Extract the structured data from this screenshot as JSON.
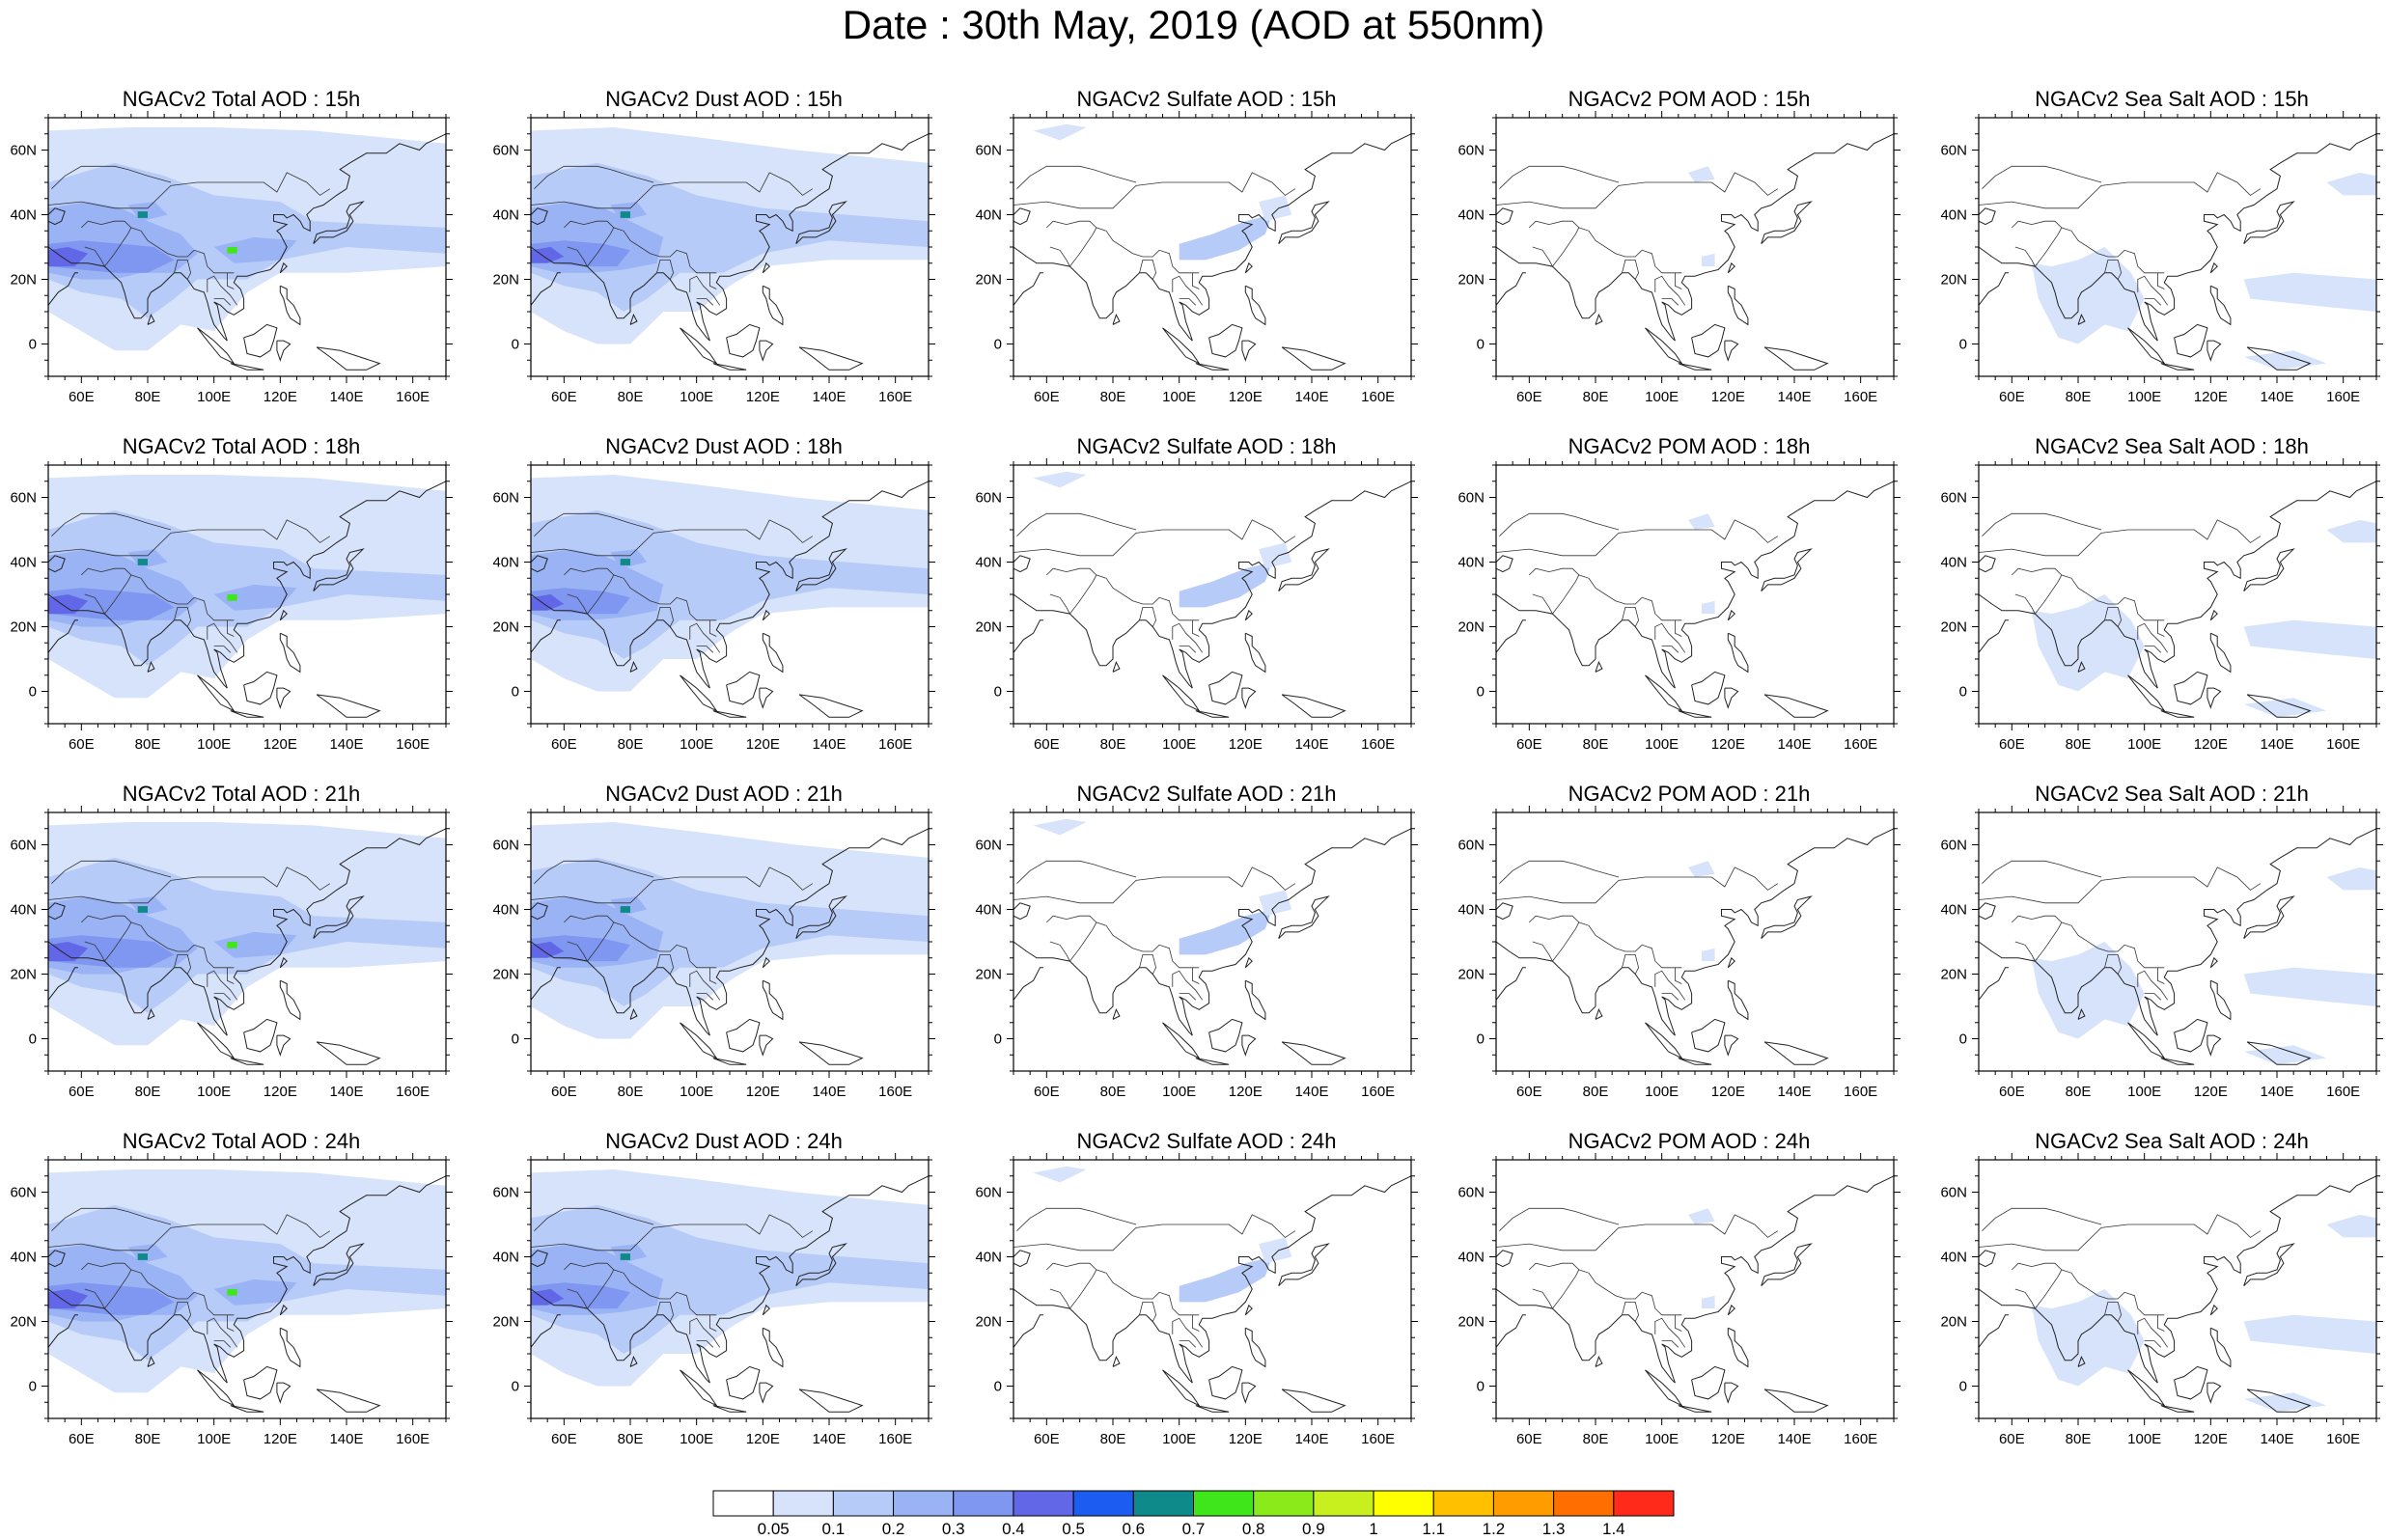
{
  "title": "Date : 30th May, 2019 (AOD at 550nm)",
  "map": {
    "lon_range": [
      50,
      170
    ],
    "lat_range": [
      -10,
      70
    ],
    "x_ticks": [
      {
        "lon": 60,
        "label": "60E"
      },
      {
        "lon": 80,
        "label": "80E"
      },
      {
        "lon": 100,
        "label": "100E"
      },
      {
        "lon": 120,
        "label": "120E"
      },
      {
        "lon": 140,
        "label": "140E"
      },
      {
        "lon": 160,
        "label": "160E"
      }
    ],
    "y_ticks": [
      {
        "lat": 60,
        "label": "60N"
      },
      {
        "lat": 40,
        "label": "40N"
      },
      {
        "lat": 20,
        "label": "20N"
      },
      {
        "lat": 0,
        "label": "0"
      }
    ]
  },
  "panels": [
    {
      "title": "NGACv2 Total AOD : 15h",
      "species": "total",
      "hour": 15
    },
    {
      "title": "NGACv2 Dust AOD : 15h",
      "species": "dust",
      "hour": 15
    },
    {
      "title": "NGACv2 Sulfate AOD : 15h",
      "species": "sulfate",
      "hour": 15
    },
    {
      "title": "NGACv2 POM AOD : 15h",
      "species": "pom",
      "hour": 15
    },
    {
      "title": "NGACv2 Sea Salt AOD : 15h",
      "species": "seasalt",
      "hour": 15
    },
    {
      "title": "NGACv2 Total AOD : 18h",
      "species": "total",
      "hour": 18
    },
    {
      "title": "NGACv2 Dust AOD : 18h",
      "species": "dust",
      "hour": 18
    },
    {
      "title": "NGACv2 Sulfate AOD : 18h",
      "species": "sulfate",
      "hour": 18
    },
    {
      "title": "NGACv2 POM AOD : 18h",
      "species": "pom",
      "hour": 18
    },
    {
      "title": "NGACv2 Sea Salt AOD : 18h",
      "species": "seasalt",
      "hour": 18
    },
    {
      "title": "NGACv2 Total AOD : 21h",
      "species": "total",
      "hour": 21
    },
    {
      "title": "NGACv2 Dust AOD : 21h",
      "species": "dust",
      "hour": 21
    },
    {
      "title": "NGACv2 Sulfate AOD : 21h",
      "species": "sulfate",
      "hour": 21
    },
    {
      "title": "NGACv2 POM AOD : 21h",
      "species": "pom",
      "hour": 21
    },
    {
      "title": "NGACv2 Sea Salt AOD : 21h",
      "species": "seasalt",
      "hour": 21
    },
    {
      "title": "NGACv2 Total AOD : 24h",
      "species": "total",
      "hour": 24
    },
    {
      "title": "NGACv2 Dust AOD : 24h",
      "species": "dust",
      "hour": 24
    },
    {
      "title": "NGACv2 Sulfate AOD : 24h",
      "species": "sulfate",
      "hour": 24
    },
    {
      "title": "NGACv2 POM AOD : 24h",
      "species": "pom",
      "hour": 24
    },
    {
      "title": "NGACv2 Sea Salt  AOD : 24h",
      "species": "seasalt",
      "hour": 24
    }
  ],
  "colorbar": {
    "labels": [
      "0.05",
      "0.1",
      "0.2",
      "0.3",
      "0.4",
      "0.5",
      "0.6",
      "0.7",
      "0.8",
      "0.9",
      "1",
      "1.1",
      "1.2",
      "1.3",
      "1.4"
    ],
    "colors": [
      "#ffffff",
      "#d7e3fb",
      "#b7cbf8",
      "#99b3f5",
      "#7f97f0",
      "#6267e8",
      "#1d5cf0",
      "#0f8a8a",
      "#3fe61a",
      "#8bea1a",
      "#c8f01e",
      "#ffff00",
      "#ffc000",
      "#ff9c00",
      "#ff6e00",
      "#ff2a1a"
    ]
  }
}
